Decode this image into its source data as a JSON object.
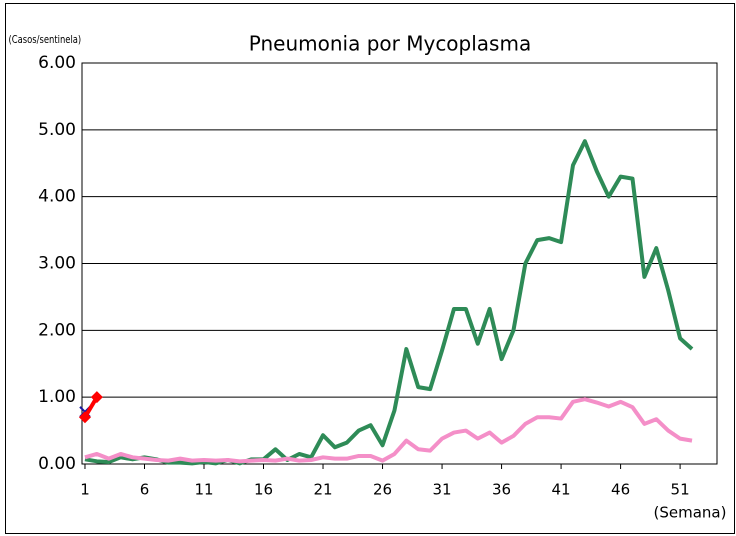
{
  "chart_data": {
    "type": "line",
    "title": "Pneumonia por Mycoplasma",
    "y_label": "(Casos/sentinela)",
    "x_label": "(Semana)",
    "x": [
      1,
      2,
      3,
      4,
      5,
      6,
      7,
      8,
      9,
      10,
      11,
      12,
      13,
      14,
      15,
      16,
      17,
      18,
      19,
      20,
      21,
      22,
      23,
      24,
      25,
      26,
      27,
      28,
      29,
      30,
      31,
      32,
      33,
      34,
      35,
      36,
      37,
      38,
      39,
      40,
      41,
      42,
      43,
      44,
      45,
      46,
      47,
      48,
      49,
      50,
      51,
      52
    ],
    "series": [
      {
        "color": "#2e8b57",
        "marker": "none",
        "width": 4,
        "values": [
          0.07,
          0.04,
          0.03,
          0.1,
          0.07,
          0.1,
          0.07,
          0.02,
          0.02,
          0.01,
          0.03,
          0.01,
          0.06,
          0.01,
          0.07,
          0.07,
          0.22,
          0.06,
          0.15,
          0.1,
          0.43,
          0.25,
          0.32,
          0.5,
          0.58,
          0.28,
          0.8,
          1.72,
          1.15,
          1.12,
          1.7,
          2.32,
          2.32,
          1.8,
          2.32,
          1.57,
          2.0,
          3.0,
          3.35,
          3.38,
          3.32,
          4.47,
          4.83,
          4.38,
          4.0,
          4.3,
          4.27,
          2.8,
          3.23,
          2.6,
          1.88,
          1.72
        ]
      },
      {
        "color": "#f48fc8",
        "marker": "none",
        "width": 4,
        "values": [
          0.1,
          0.15,
          0.08,
          0.15,
          0.1,
          0.08,
          0.06,
          0.05,
          0.08,
          0.05,
          0.06,
          0.05,
          0.06,
          0.04,
          0.05,
          0.06,
          0.05,
          0.08,
          0.05,
          0.06,
          0.1,
          0.08,
          0.08,
          0.12,
          0.12,
          0.05,
          0.15,
          0.35,
          0.22,
          0.2,
          0.38,
          0.47,
          0.5,
          0.38,
          0.47,
          0.32,
          0.42,
          0.6,
          0.7,
          0.7,
          0.68,
          0.93,
          0.97,
          0.92,
          0.86,
          0.93,
          0.85,
          0.6,
          0.67,
          0.5,
          0.38,
          0.35
        ]
      },
      {
        "color": "#1a1aa0",
        "marker": "x",
        "width": 2,
        "values": [
          0.78,
          null,
          null,
          null,
          null,
          null,
          null,
          null,
          null,
          null,
          null,
          null,
          null,
          null,
          null,
          null,
          null,
          null,
          null,
          null,
          null,
          null,
          null,
          null,
          null,
          null,
          null,
          null,
          null,
          null,
          null,
          null,
          null,
          null,
          null,
          null,
          null,
          null,
          null,
          null,
          null,
          null,
          null,
          null,
          null,
          null,
          null,
          null,
          null,
          null,
          null,
          null
        ]
      },
      {
        "color": "#ff0000",
        "marker": "diamond",
        "width": 4,
        "values": [
          0.7,
          1.0,
          null,
          null,
          null,
          null,
          null,
          null,
          null,
          null,
          null,
          null,
          null,
          null,
          null,
          null,
          null,
          null,
          null,
          null,
          null,
          null,
          null,
          null,
          null,
          null,
          null,
          null,
          null,
          null,
          null,
          null,
          null,
          null,
          null,
          null,
          null,
          null,
          null,
          null,
          null,
          null,
          null,
          null,
          null,
          null,
          null,
          null,
          null,
          null,
          null,
          null
        ]
      }
    ],
    "xlim": [
      0.75,
      54.1
    ],
    "xticks": [
      1,
      6,
      11,
      16,
      21,
      26,
      31,
      36,
      41,
      46,
      51
    ],
    "ylim": [
      0,
      6
    ],
    "yticks": [
      {
        "value": 0,
        "label": "0.00"
      },
      {
        "value": 1,
        "label": "1.00"
      },
      {
        "value": 2,
        "label": "2.00"
      },
      {
        "value": 3,
        "label": "3.00"
      },
      {
        "value": 4,
        "label": "4.00"
      },
      {
        "value": 5,
        "label": "5.00"
      },
      {
        "value": 6,
        "label": "6.00"
      }
    ],
    "grid": true
  }
}
